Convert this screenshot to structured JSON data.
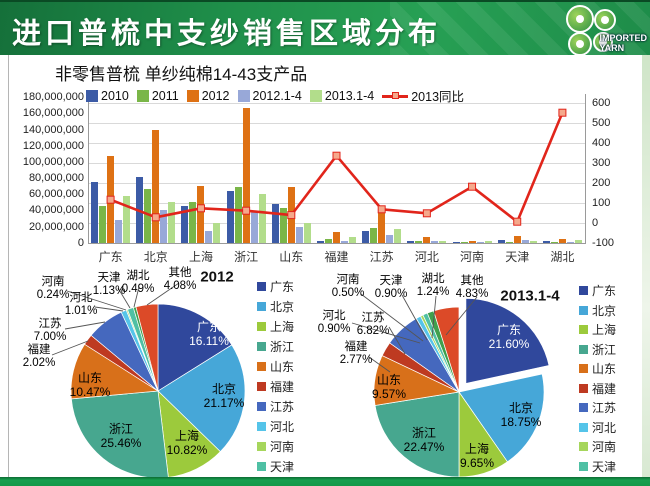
{
  "header": {
    "title": "进口普梳中支纱销售区域分布",
    "logo": {
      "icon": "clover-icon",
      "line1": "IMPORTED",
      "line2": "YARN"
    }
  },
  "subtitle": "非零售普梳 单纱纯棉14-43支产品",
  "colors": {
    "header_green": "#1F9150",
    "footer_green": "#14994A",
    "trend_line": "#E1251B",
    "trend_marker": "#F5A98C",
    "region_palette": {
      "广东": "#30489C",
      "北京": "#46A7D8",
      "上海": "#9CCA3C",
      "浙江": "#47A78F",
      "山东": "#D8701A",
      "福建": "#BE3A21",
      "江苏": "#4568BE",
      "河北": "#55C4E9",
      "河南": "#A6D65C",
      "天津": "#4FC0A4",
      "湖北": "#3FA04C",
      "其他": "#DC4A28"
    }
  },
  "chart_data": [
    {
      "type": "bar",
      "title": "非零售普梳 单纱纯棉14-43支产品",
      "categories": [
        "广东",
        "北京",
        "上海",
        "浙江",
        "山东",
        "福建",
        "江苏",
        "河北",
        "河南",
        "天津",
        "湖北"
      ],
      "series": [
        {
          "name": "2010",
          "color": "#3C5BA6",
          "values": [
            75000000,
            81000000,
            45000000,
            64000000,
            48000000,
            2000000,
            15000000,
            1500000,
            1000000,
            3000000,
            1500000
          ]
        },
        {
          "name": "2011",
          "color": "#7AB648",
          "values": [
            46000000,
            67000000,
            51000000,
            69000000,
            43000000,
            4000000,
            18000000,
            2000000,
            1000000,
            1000000,
            1000000
          ]
        },
        {
          "name": "2012",
          "color": "#DE7114",
          "values": [
            107000000,
            140000000,
            70000000,
            167000000,
            69000000,
            13000000,
            42000000,
            6500000,
            2000000,
            8000000,
            4000000
          ]
        },
        {
          "name": "2012.1-4",
          "color": "#98A8D8",
          "values": [
            28000000,
            40000000,
            14000000,
            39000000,
            19000000,
            1500000,
            10000000,
            1500000,
            900000,
            3000000,
            500000
          ]
        },
        {
          "name": "2013.1-4",
          "color": "#B2DD8B",
          "values": [
            58000000,
            51000000,
            25000000,
            60000000,
            25000000,
            6500000,
            17000000,
            2500000,
            2500000,
            2500000,
            3000000
          ]
        }
      ],
      "line_series": {
        "name": "2013同比",
        "color": "#E1251B",
        "marker_color": "#F5A98C",
        "values": [
          115,
          27,
          72,
          60,
          38,
          335,
          67,
          47,
          180,
          5,
          550
        ]
      },
      "left_axis": {
        "min": 0,
        "max": 180000000,
        "step": 20000000,
        "ticks": [
          "180,000,000",
          "160,000,000",
          "140,000,000",
          "120,000,000",
          "100,000,000",
          "80,000,000",
          "60,000,000",
          "40,000,000",
          "20,000,000",
          "0"
        ]
      },
      "right_axis": {
        "min": -100,
        "max": 600,
        "step": 100,
        "ticks": [
          "600",
          "500",
          "400",
          "300",
          "200",
          "100",
          "0",
          "-100"
        ]
      },
      "grid": true,
      "legend_position": "top"
    },
    {
      "type": "pie",
      "title": "2012",
      "slices": [
        {
          "name": "广东",
          "value": 16.11,
          "label": "16.11%"
        },
        {
          "name": "北京",
          "value": 21.17,
          "label": "21.17%"
        },
        {
          "name": "上海",
          "value": 10.82,
          "label": "10.82%"
        },
        {
          "name": "浙江",
          "value": 25.46,
          "label": "25.46%"
        },
        {
          "name": "山东",
          "value": 10.47,
          "label": "10.47%"
        },
        {
          "name": "福建",
          "value": 2.02,
          "label": "2.02%"
        },
        {
          "name": "江苏",
          "value": 7.0,
          "label": "7.00%"
        },
        {
          "name": "河北",
          "value": 1.01,
          "label": "1.01%"
        },
        {
          "name": "河南",
          "value": 0.24,
          "label": "0.24%"
        },
        {
          "name": "天津",
          "value": 1.13,
          "label": "1.13%"
        },
        {
          "name": "湖北",
          "value": 0.49,
          "label": "0.49%"
        },
        {
          "name": "其他",
          "value": 4.08,
          "label": "4.08%"
        }
      ],
      "legend_items": [
        "广东",
        "北京",
        "上海",
        "浙江",
        "山东",
        "福建",
        "江苏",
        "河北",
        "河南",
        "天津"
      ]
    },
    {
      "type": "pie",
      "title": "2013.1-4",
      "exploded_slice": "广东",
      "slices": [
        {
          "name": "广东",
          "value": 21.6,
          "label": "21.60%"
        },
        {
          "name": "北京",
          "value": 18.75,
          "label": "18.75%"
        },
        {
          "name": "上海",
          "value": 9.65,
          "label": "9.65%"
        },
        {
          "name": "浙江",
          "value": 22.47,
          "label": "22.47%"
        },
        {
          "name": "山东",
          "value": 9.57,
          "label": "9.57%"
        },
        {
          "name": "福建",
          "value": 2.77,
          "label": "2.77%"
        },
        {
          "name": "江苏",
          "value": 6.82,
          "label": "6.82%"
        },
        {
          "name": "河北",
          "value": 0.9,
          "label": "0.90%"
        },
        {
          "name": "河南",
          "value": 0.5,
          "label": "0.50%"
        },
        {
          "name": "天津",
          "value": 0.9,
          "label": "0.90%"
        },
        {
          "name": "湖北",
          "value": 1.24,
          "label": "1.24%"
        },
        {
          "name": "其他",
          "value": 4.83,
          "label": "4.83%"
        }
      ],
      "legend_items": [
        "广东",
        "北京",
        "上海",
        "浙江",
        "山东",
        "福建",
        "江苏",
        "河北",
        "河南",
        "天津"
      ]
    }
  ]
}
